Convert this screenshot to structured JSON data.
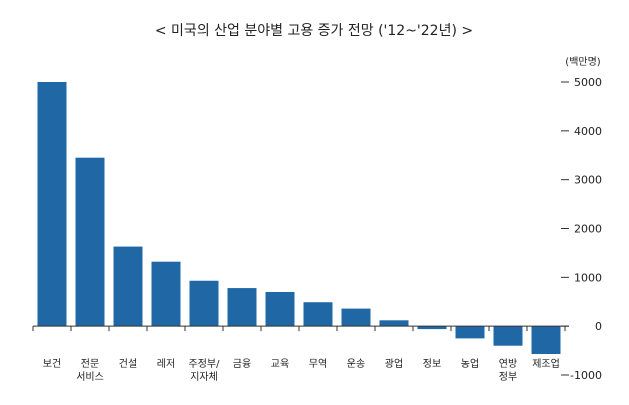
{
  "chart_data": {
    "type": "bar",
    "title": "< 미국의 산업 분야별 고용 증가 전망 ('12~'22년) >",
    "unit_label": "(백만명)",
    "categories": [
      "보건",
      "전문\n서비스",
      "건설",
      "레저",
      "주정부/\n지자체",
      "금융",
      "교육",
      "무역",
      "운송",
      "광업",
      "정보",
      "농업",
      "연방\n정부",
      "제조업"
    ],
    "values": [
      5000,
      3450,
      1630,
      1320,
      930,
      780,
      700,
      490,
      360,
      120,
      -60,
      -250,
      -400,
      -570
    ],
    "ylim": [
      -1000,
      5000
    ],
    "yticks": [
      -1000,
      0,
      1000,
      2000,
      3000,
      4000,
      5000
    ],
    "ytick_labels": [
      "-1000",
      "0",
      "1000",
      "2000",
      "3000",
      "4000",
      "5000"
    ],
    "grid": false,
    "bar_color": "#1f67a5",
    "axis_color": "#333333"
  }
}
